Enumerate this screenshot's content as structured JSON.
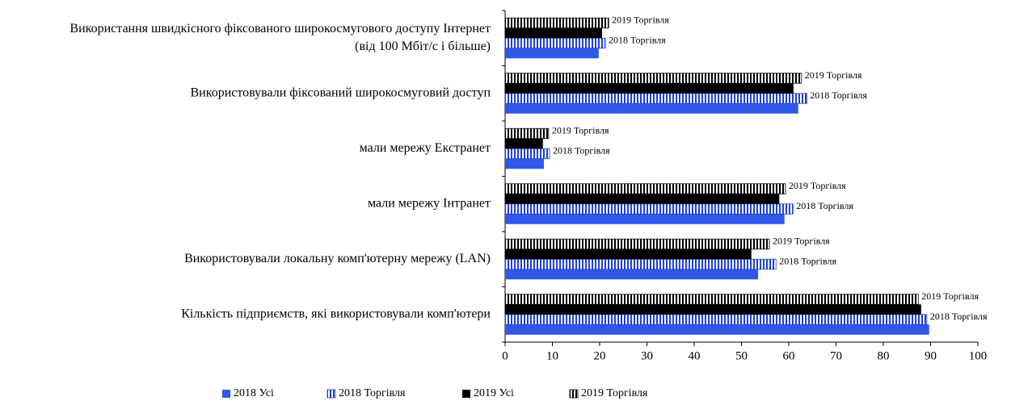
{
  "chart_data": {
    "type": "bar",
    "orientation": "horizontal",
    "categories": [
      [
        "Використання швидкісного фіксованого широкосмугового доступу Інтернет",
        "(від 100 Мбіт/с і більше)"
      ],
      [
        "Використовували фіксований широкосмуговий доступ"
      ],
      [
        "мали мережу Екстранет"
      ],
      [
        "мали мережу Інтранет"
      ],
      [
        "Використовували локальну комп'ютерну мережу (LAN)"
      ],
      [
        "Кількість підприємств, які використовували комп'ютери"
      ]
    ],
    "series": [
      {
        "name": "2018 Усі",
        "color": "#3057e8",
        "fill": "solid",
        "values": [
          19.8,
          62,
          8.2,
          59.1,
          53.5,
          89.7
        ]
      },
      {
        "name": "2018 Торгівля",
        "color": "#1f3fd8",
        "fill": "striped",
        "data_labels": true,
        "values": [
          21.2,
          63.8,
          9.4,
          60.9,
          57.3,
          89.2
        ]
      },
      {
        "name": "2019 Усі",
        "color": "#000000",
        "fill": "solid",
        "values": [
          20.5,
          61,
          8,
          58,
          52.1,
          88
        ]
      },
      {
        "name": "2019 Торгівля",
        "color": "#000000",
        "fill": "striped",
        "data_labels": true,
        "values": [
          21.9,
          62.7,
          9.2,
          59.3,
          55.9,
          87.4
        ]
      }
    ],
    "xlim": [
      0,
      100
    ],
    "xticks": [
      0,
      10,
      20,
      30,
      40,
      50,
      60,
      70,
      80,
      90,
      100
    ],
    "grid": false,
    "legend": "bottom"
  }
}
